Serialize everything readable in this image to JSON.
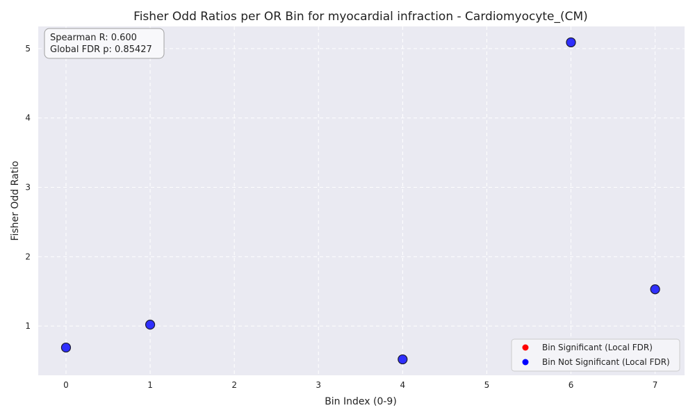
{
  "chart_data": {
    "type": "scatter",
    "title": "Fisher Odd Ratios per OR Bin for myocardial infraction - Cardiomyocyte_(CM)",
    "xlabel": "Bin Index (0-9)",
    "ylabel": "Fisher Odd Ratio",
    "xlim": [
      -0.33,
      7.35
    ],
    "ylim": [
      0.29,
      5.32
    ],
    "xticks": [
      "0",
      "1",
      "2",
      "3",
      "4",
      "5",
      "6",
      "7"
    ],
    "yticks": [
      "1",
      "2",
      "3",
      "4",
      "5"
    ],
    "grid": true,
    "series": [
      {
        "name": "Bin Significant (Local FDR)",
        "color": "#ff0000",
        "x": [],
        "y": []
      },
      {
        "name": "Bin Not Significant (Local FDR)",
        "color": "#0000ff",
        "x": [
          0,
          1,
          4,
          6,
          7
        ],
        "y": [
          0.69,
          1.02,
          0.52,
          5.09,
          1.53
        ]
      }
    ],
    "stats": {
      "spearman": "Spearman R: 0.600",
      "global_fdr": "Global FDR p: 0.85427"
    },
    "legend_position": "lower-right",
    "plot_background": "#eaeaf2"
  }
}
